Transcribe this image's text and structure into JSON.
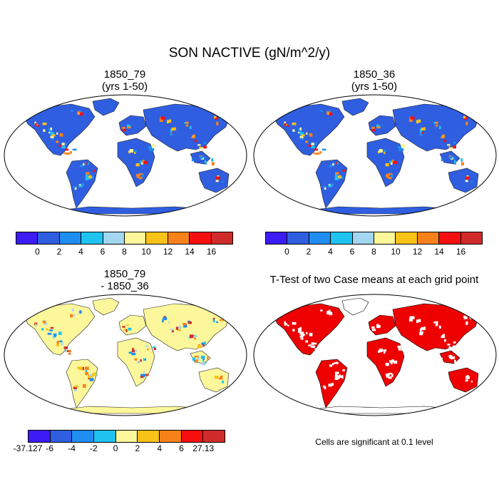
{
  "figure": {
    "title": "SON NACTIVE (gN/m^2/y)",
    "panels": [
      {
        "id": "tl",
        "title_line1": "1850_79",
        "title_line2": "(yrs 1-50)"
      },
      {
        "id": "tr",
        "title_line1": "1850_36",
        "title_line2": "(yrs 1-50)"
      },
      {
        "id": "bl",
        "title_line1": "1850_79",
        "title_line2": "- 1850_36"
      },
      {
        "id": "br",
        "title_line1": "T-Test of two Case means at each grid point",
        "title_line2": ""
      }
    ],
    "significance_note": "Cells are significant at 0.1 level"
  },
  "colorbars": {
    "abs": {
      "colors": [
        "#3c1cf5",
        "#2f5ee0",
        "#1f8ef0",
        "#1ec3f0",
        "#a3d6ef",
        "#fcf79a",
        "#f9c218",
        "#f7821a",
        "#f50f0e",
        "#d02b2b"
      ],
      "labels": [
        "0",
        "2",
        "4",
        "6",
        "8",
        "10",
        "12",
        "14",
        "16"
      ]
    },
    "diff": {
      "colors": [
        "#3c1cf5",
        "#2f5ee0",
        "#1f8ef0",
        "#1ec3f0",
        "#fcf79a",
        "#f9c218",
        "#f7821a",
        "#f50f0e",
        "#d02b2b"
      ],
      "labels": [
        "-37.127",
        "-6",
        "-4",
        "-2",
        "0",
        "2",
        "4",
        "6",
        "27.13"
      ]
    }
  },
  "map_colors": {
    "abs_background_land": "#2f5ee0",
    "diff_background_land": "#fcf79a",
    "ttest_fill": "#ee0000"
  }
}
